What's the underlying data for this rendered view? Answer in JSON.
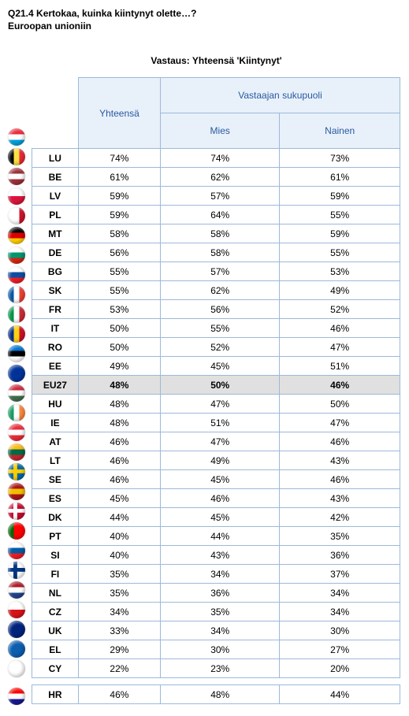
{
  "question": {
    "code_line": "Q21.4 Kertokaa, kuinka kiintynyt olette…?",
    "sub_line": "Euroopan unioniin"
  },
  "response_title": "Vastaus: Yhteensä 'Kiintynyt'",
  "headers": {
    "total": "Yhteensä",
    "group": "Vastaajan sukupuoli",
    "male": "Mies",
    "female": "Nainen"
  },
  "flag_styles": {
    "LU": {
      "cls": "stripes-h",
      "c1": "#ed2939",
      "c2": "#fff",
      "c3": "#00a1de"
    },
    "BE": {
      "cls": "stripes-v",
      "c1": "#000",
      "c2": "#fae042",
      "c3": "#ed2939"
    },
    "LV": {
      "cls": "stripes-h",
      "c1": "#9e3039",
      "c2": "#fff",
      "c3": "#9e3039"
    },
    "PL": {
      "cls": "stripes-2h",
      "c1": "#fff",
      "c2": "#dc143c"
    },
    "MT": {
      "cls": "stripes-v",
      "c1": "#fff",
      "c2": "#fff",
      "c3": "#cf142b"
    },
    "DE": {
      "cls": "stripes-h",
      "c1": "#000",
      "c2": "#dd0000",
      "c3": "#ffce00"
    },
    "BG": {
      "cls": "stripes-h",
      "c1": "#fff",
      "c2": "#00966e",
      "c3": "#d62612"
    },
    "SK": {
      "cls": "stripes-h",
      "c1": "#fff",
      "c2": "#0b4ea2",
      "c3": "#ee1c25"
    },
    "FR": {
      "cls": "stripes-v",
      "c1": "#0055a4",
      "c2": "#fff",
      "c3": "#ef4135"
    },
    "IT": {
      "cls": "stripes-v",
      "c1": "#009246",
      "c2": "#fff",
      "c3": "#ce2b37"
    },
    "RO": {
      "cls": "stripes-v",
      "c1": "#002b7f",
      "c2": "#fcd116",
      "c3": "#ce1126"
    },
    "EE": {
      "cls": "stripes-h",
      "c1": "#0072ce",
      "c2": "#000",
      "c3": "#fff"
    },
    "EU27": {
      "cls": "solid",
      "c1": "#003399"
    },
    "HU": {
      "cls": "stripes-h",
      "c1": "#cd2a3e",
      "c2": "#fff",
      "c3": "#436f4d"
    },
    "IE": {
      "cls": "stripes-v",
      "c1": "#169b62",
      "c2": "#fff",
      "c3": "#ff883e"
    },
    "AT": {
      "cls": "stripes-h",
      "c1": "#ed2939",
      "c2": "#fff",
      "c3": "#ed2939"
    },
    "LT": {
      "cls": "stripes-h",
      "c1": "#fdb913",
      "c2": "#006a44",
      "c3": "#c1272d"
    },
    "SE": {
      "cls": "cross",
      "bg": "#006aa7",
      "cc": "#fecc00"
    },
    "ES": {
      "cls": "stripes-h",
      "c1": "#aa151b",
      "c2": "#f1bf00",
      "c3": "#aa151b"
    },
    "DK": {
      "cls": "cross",
      "bg": "#c60c30",
      "cc": "#fff"
    },
    "PT": {
      "cls": "stripes-v",
      "c1": "#006600",
      "c2": "#ff0000",
      "c3": "#ff0000"
    },
    "SI": {
      "cls": "stripes-h",
      "c1": "#fff",
      "c2": "#005da4",
      "c3": "#ed1c24"
    },
    "FI": {
      "cls": "cross",
      "bg": "#fff",
      "cc": "#003580"
    },
    "NL": {
      "cls": "stripes-h",
      "c1": "#ae1c28",
      "c2": "#fff",
      "c3": "#21468b"
    },
    "CZ": {
      "cls": "stripes-2h",
      "c1": "#fff",
      "c2": "#d7141a"
    },
    "UK": {
      "cls": "solid",
      "c1": "#00247d"
    },
    "EL": {
      "cls": "solid",
      "c1": "#0d5eaf"
    },
    "CY": {
      "cls": "solid",
      "c1": "#fff"
    },
    "HR": {
      "cls": "stripes-h",
      "c1": "#ff0000",
      "c2": "#fff",
      "c3": "#171796"
    }
  },
  "rows": [
    {
      "code": "LU",
      "total": "74%",
      "m": "74%",
      "f": "73%"
    },
    {
      "code": "BE",
      "total": "61%",
      "m": "62%",
      "f": "61%"
    },
    {
      "code": "LV",
      "total": "59%",
      "m": "57%",
      "f": "59%"
    },
    {
      "code": "PL",
      "total": "59%",
      "m": "64%",
      "f": "55%"
    },
    {
      "code": "MT",
      "total": "58%",
      "m": "58%",
      "f": "59%"
    },
    {
      "code": "DE",
      "total": "56%",
      "m": "58%",
      "f": "55%"
    },
    {
      "code": "BG",
      "total": "55%",
      "m": "57%",
      "f": "53%"
    },
    {
      "code": "SK",
      "total": "55%",
      "m": "62%",
      "f": "49%"
    },
    {
      "code": "FR",
      "total": "53%",
      "m": "56%",
      "f": "52%"
    },
    {
      "code": "IT",
      "total": "50%",
      "m": "55%",
      "f": "46%"
    },
    {
      "code": "RO",
      "total": "50%",
      "m": "52%",
      "f": "47%"
    },
    {
      "code": "EE",
      "total": "49%",
      "m": "45%",
      "f": "51%"
    },
    {
      "code": "EU27",
      "total": "48%",
      "m": "50%",
      "f": "46%",
      "hl": true
    },
    {
      "code": "HU",
      "total": "48%",
      "m": "47%",
      "f": "50%"
    },
    {
      "code": "IE",
      "total": "48%",
      "m": "51%",
      "f": "47%"
    },
    {
      "code": "AT",
      "total": "46%",
      "m": "47%",
      "f": "46%"
    },
    {
      "code": "LT",
      "total": "46%",
      "m": "49%",
      "f": "43%"
    },
    {
      "code": "SE",
      "total": "46%",
      "m": "45%",
      "f": "46%"
    },
    {
      "code": "ES",
      "total": "45%",
      "m": "46%",
      "f": "43%"
    },
    {
      "code": "DK",
      "total": "44%",
      "m": "45%",
      "f": "42%"
    },
    {
      "code": "PT",
      "total": "40%",
      "m": "44%",
      "f": "35%"
    },
    {
      "code": "SI",
      "total": "40%",
      "m": "43%",
      "f": "36%"
    },
    {
      "code": "FI",
      "total": "35%",
      "m": "34%",
      "f": "37%"
    },
    {
      "code": "NL",
      "total": "35%",
      "m": "36%",
      "f": "34%"
    },
    {
      "code": "CZ",
      "total": "34%",
      "m": "35%",
      "f": "34%"
    },
    {
      "code": "UK",
      "total": "33%",
      "m": "34%",
      "f": "30%"
    },
    {
      "code": "EL",
      "total": "29%",
      "m": "30%",
      "f": "27%"
    },
    {
      "code": "CY",
      "total": "22%",
      "m": "23%",
      "f": "20%"
    }
  ],
  "extra_row": {
    "code": "HR",
    "total": "46%",
    "m": "48%",
    "f": "44%"
  }
}
